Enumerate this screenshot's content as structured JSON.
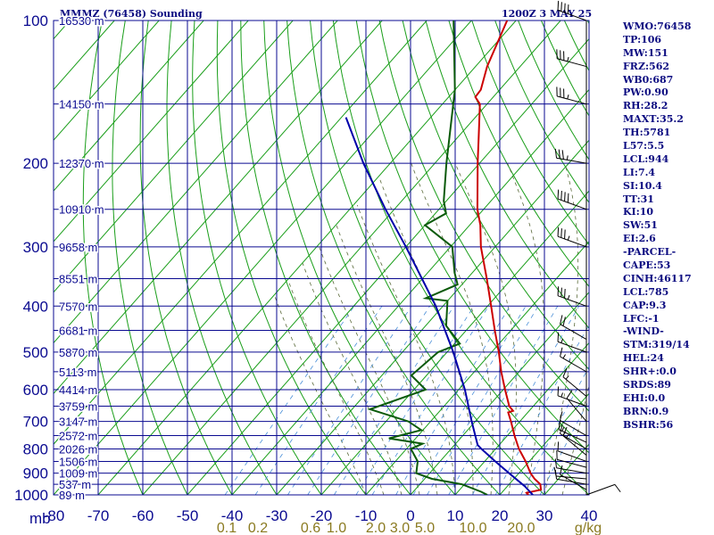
{
  "header": {
    "title_left": "MMMZ (76458) Sounding",
    "title_right": "1200Z  3 MAY 25"
  },
  "indices": [
    "WMO:76458",
    "TP:106",
    "MW:151",
    "FRZ:562",
    "WB0:687",
    "PW:0.90",
    "RH:28.2",
    "MAXT:35.2",
    "TH:5781",
    "L57:5.5",
    "LCL:944",
    "LI:7.4",
    "SI:10.4",
    "TT:31",
    "KI:10",
    "SW:51",
    "EI:2.6",
    "-PARCEL-",
    "CAPE:53",
    "CINH:46117",
    "LCL:785",
    "CAP:9.3",
    "LFC:-1",
    "-WIND-",
    "STM:319/14",
    "HEL:24",
    "SHR+:0.0",
    "SRDS:89",
    "EHI:0.0",
    "BRN:0.9",
    "BSHR:56"
  ],
  "chart_data": {
    "type": "line",
    "title": "",
    "xlabel": "",
    "ylabel": "mb",
    "y_scale": "log",
    "ylim": [
      1000,
      100
    ],
    "xlim": [
      -80,
      40
    ],
    "grid": true,
    "pressure_ticks": [
      100,
      200,
      300,
      400,
      500,
      600,
      700,
      800,
      900,
      1000
    ],
    "temperature_ticks": [
      -80,
      -70,
      -60,
      -50,
      -40,
      -30,
      -20,
      -10,
      0,
      10,
      20,
      30,
      40
    ],
    "temperature_tick_labels": [
      "-80",
      "-70",
      "-60",
      "-50",
      "-40",
      "-30",
      "-20",
      "-10",
      "0",
      "10",
      "20",
      "30",
      "40"
    ],
    "mixing_ratio_labels": [
      "0.1",
      "0.2",
      "0.6",
      "1.0",
      "2.0",
      "3.0",
      "5.0",
      "10.0",
      "20.0",
      "g/kg"
    ],
    "height_levels": [
      {
        "p": 100,
        "label": "16530 m"
      },
      {
        "p": 150,
        "label": "14150 m"
      },
      {
        "p": 200,
        "label": "12370 m"
      },
      {
        "p": 250,
        "label": "10910 m"
      },
      {
        "p": 300,
        "label": "9658 m"
      },
      {
        "p": 350,
        "label": "8551 m"
      },
      {
        "p": 400,
        "label": "7570 m"
      },
      {
        "p": 450,
        "label": "6681 m"
      },
      {
        "p": 500,
        "label": "5870 m"
      },
      {
        "p": 550,
        "label": "5113 m"
      },
      {
        "p": 600,
        "label": "4414 m"
      },
      {
        "p": 650,
        "label": "3759 m"
      },
      {
        "p": 700,
        "label": "3147 m"
      },
      {
        "p": 750,
        "label": "2572 m"
      },
      {
        "p": 800,
        "label": "2026 m"
      },
      {
        "p": 850,
        "label": "1506 m"
      },
      {
        "p": 900,
        "label": "1009 m"
      },
      {
        "p": 950,
        "label": "537 m"
      },
      {
        "p": 1000,
        "label": "89 m"
      }
    ],
    "series": [
      {
        "name": "Temperature",
        "color": "#cc0000",
        "points": [
          {
            "p": 1000,
            "t": 26.4
          },
          {
            "p": 990,
            "t": 25.6
          },
          {
            "p": 975,
            "t": 28.2
          },
          {
            "p": 950,
            "t": 27.0
          },
          {
            "p": 925,
            "t": 24.6
          },
          {
            "p": 900,
            "t": 22.6
          },
          {
            "p": 850,
            "t": 19.2
          },
          {
            "p": 800,
            "t": 15.2
          },
          {
            "p": 750,
            "t": 11.6
          },
          {
            "p": 700,
            "t": 8.0
          },
          {
            "p": 670,
            "t": 5.6
          },
          {
            "p": 665,
            "t": 6.4
          },
          {
            "p": 650,
            "t": 4.6
          },
          {
            "p": 600,
            "t": 0.4
          },
          {
            "p": 550,
            "t": -4.0
          },
          {
            "p": 500,
            "t": -8.4
          },
          {
            "p": 450,
            "t": -13.6
          },
          {
            "p": 400,
            "t": -19.2
          },
          {
            "p": 350,
            "t": -25.6
          },
          {
            "p": 300,
            "t": -33.2
          },
          {
            "p": 270,
            "t": -37.6
          },
          {
            "p": 250,
            "t": -41.4
          },
          {
            "p": 200,
            "t": -50.4
          },
          {
            "p": 175,
            "t": -55.6
          },
          {
            "p": 150,
            "t": -61.6
          },
          {
            "p": 145,
            "t": -64.0
          },
          {
            "p": 140,
            "t": -64.2
          },
          {
            "p": 125,
            "t": -67.4
          },
          {
            "p": 100,
            "t": -72.0
          }
        ]
      },
      {
        "name": "Dewpoint",
        "color": "#0a5a0a",
        "points": [
          {
            "p": 1000,
            "t": 17.2
          },
          {
            "p": 985,
            "t": 15.2
          },
          {
            "p": 950,
            "t": 9.4
          },
          {
            "p": 925,
            "t": 1.6
          },
          {
            "p": 900,
            "t": -3.0
          },
          {
            "p": 850,
            "t": -5.0
          },
          {
            "p": 800,
            "t": -9.0
          },
          {
            "p": 780,
            "t": -7.4
          },
          {
            "p": 760,
            "t": -16.0
          },
          {
            "p": 730,
            "t": -10.4
          },
          {
            "p": 700,
            "t": -15.0
          },
          {
            "p": 660,
            "t": -26.0
          },
          {
            "p": 600,
            "t": -17.4
          },
          {
            "p": 560,
            "t": -23.4
          },
          {
            "p": 500,
            "t": -22.0
          },
          {
            "p": 480,
            "t": -18.8
          },
          {
            "p": 440,
            "t": -25.4
          },
          {
            "p": 390,
            "t": -30.0
          },
          {
            "p": 385,
            "t": -35.4
          },
          {
            "p": 360,
            "t": -31.0
          },
          {
            "p": 340,
            "t": -34.0
          },
          {
            "p": 300,
            "t": -39.6
          },
          {
            "p": 270,
            "t": -50.0
          },
          {
            "p": 255,
            "t": -47.6
          },
          {
            "p": 240,
            "t": -50.6
          },
          {
            "p": 200,
            "t": -57.4
          },
          {
            "p": 140,
            "t": -70.0
          },
          {
            "p": 100,
            "t": -84.0
          }
        ]
      },
      {
        "name": "Parcel",
        "color": "#0000aa",
        "points": [
          {
            "p": 1000,
            "t": 27.4
          },
          {
            "p": 960,
            "t": 24.0
          },
          {
            "p": 900,
            "t": 17.8
          },
          {
            "p": 850,
            "t": 12.4
          },
          {
            "p": 800,
            "t": 6.8
          },
          {
            "p": 785,
            "t": 5.2
          },
          {
            "p": 700,
            "t": -0.8
          },
          {
            "p": 600,
            "t": -8.6
          },
          {
            "p": 500,
            "t": -18.6
          },
          {
            "p": 400,
            "t": -31.6
          },
          {
            "p": 300,
            "t": -50.0
          },
          {
            "p": 250,
            "t": -62.0
          },
          {
            "p": 200,
            "t": -76.0
          },
          {
            "p": 160,
            "t": -89.0
          }
        ]
      }
    ],
    "wind_barbs": [
      {
        "p": 1000,
        "dir": 70,
        "spd": 10
      },
      {
        "p": 975,
        "dir": 300,
        "spd": 10
      },
      {
        "p": 950,
        "dir": 280,
        "spd": 10
      },
      {
        "p": 925,
        "dir": 275,
        "spd": 10
      },
      {
        "p": 900,
        "dir": 280,
        "spd": 10
      },
      {
        "p": 875,
        "dir": 285,
        "spd": 10
      },
      {
        "p": 850,
        "dir": 290,
        "spd": 10
      },
      {
        "p": 825,
        "dir": 310,
        "spd": 15
      },
      {
        "p": 800,
        "dir": 300,
        "spd": 15
      },
      {
        "p": 775,
        "dir": 295,
        "spd": 15
      },
      {
        "p": 750,
        "dir": 300,
        "spd": 10
      },
      {
        "p": 700,
        "dir": 320,
        "spd": 10
      },
      {
        "p": 650,
        "dir": 290,
        "spd": 15
      },
      {
        "p": 620,
        "dir": 310,
        "spd": 15
      },
      {
        "p": 550,
        "dir": 300,
        "spd": 15
      },
      {
        "p": 500,
        "dir": 290,
        "spd": 15
      },
      {
        "p": 470,
        "dir": 300,
        "spd": 20
      },
      {
        "p": 400,
        "dir": 290,
        "spd": 35
      },
      {
        "p": 300,
        "dir": 290,
        "spd": 35
      },
      {
        "p": 250,
        "dir": 290,
        "spd": 40
      },
      {
        "p": 200,
        "dir": 280,
        "spd": 35
      },
      {
        "p": 150,
        "dir": 285,
        "spd": 35
      },
      {
        "p": 125,
        "dir": 285,
        "spd": 35
      },
      {
        "p": 100,
        "dir": 290,
        "spd": 40
      }
    ]
  }
}
